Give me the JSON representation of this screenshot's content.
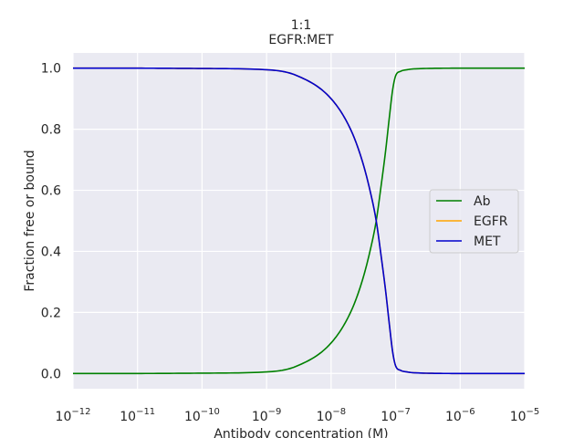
{
  "chart_data": {
    "type": "line",
    "title_line1": "1:1",
    "title_line2": "EGFR:MET",
    "xlabel": "Antibody concentration (M)",
    "ylabel": "Fraction free or bound",
    "x_scale": "log",
    "xlim": [
      1e-12,
      1e-05
    ],
    "ylim": [
      -0.05,
      1.05
    ],
    "grid": true,
    "legend_position": "center-right",
    "x_ticks": [
      {
        "base": "10",
        "exp": "−12",
        "value": 1e-12
      },
      {
        "base": "10",
        "exp": "−11",
        "value": 1e-11
      },
      {
        "base": "10",
        "exp": "−10",
        "value": 1e-10
      },
      {
        "base": "10",
        "exp": "−9",
        "value": 1e-09
      },
      {
        "base": "10",
        "exp": "−8",
        "value": 1e-08
      },
      {
        "base": "10",
        "exp": "−7",
        "value": 1e-07
      },
      {
        "base": "10",
        "exp": "−6",
        "value": 1e-06
      },
      {
        "base": "10",
        "exp": "−5",
        "value": 1e-05
      }
    ],
    "y_ticks": [
      "0.0",
      "0.2",
      "0.4",
      "0.6",
      "0.8",
      "1.0"
    ],
    "x": [
      1e-12,
      1e-11,
      1e-10,
      1e-09,
      3e-09,
      1e-08,
      2e-08,
      3e-08,
      4e-08,
      5e-08,
      6e-08,
      7e-08,
      8e-08,
      9e-08,
      1e-07,
      1.2e-07,
      1.5e-07,
      2e-07,
      1e-06,
      1e-05
    ],
    "series": [
      {
        "name": "Ab",
        "color": "#008000",
        "values": [
          0.0,
          0.0,
          0.001,
          0.005,
          0.025,
          0.1,
          0.2,
          0.3,
          0.4,
          0.5,
          0.62,
          0.73,
          0.84,
          0.93,
          0.975,
          0.99,
          0.995,
          0.998,
          1.0,
          1.0
        ]
      },
      {
        "name": "EGFR",
        "color": "#ffa500",
        "values": [
          1.0,
          1.0,
          0.999,
          0.995,
          0.975,
          0.9,
          0.8,
          0.7,
          0.6,
          0.5,
          0.38,
          0.27,
          0.16,
          0.07,
          0.025,
          0.01,
          0.005,
          0.002,
          0.0,
          0.0
        ]
      },
      {
        "name": "MET",
        "color": "#0000cd",
        "values": [
          1.0,
          1.0,
          0.999,
          0.995,
          0.975,
          0.9,
          0.8,
          0.7,
          0.6,
          0.5,
          0.38,
          0.27,
          0.16,
          0.07,
          0.025,
          0.01,
          0.005,
          0.002,
          0.0,
          0.0
        ]
      }
    ]
  }
}
